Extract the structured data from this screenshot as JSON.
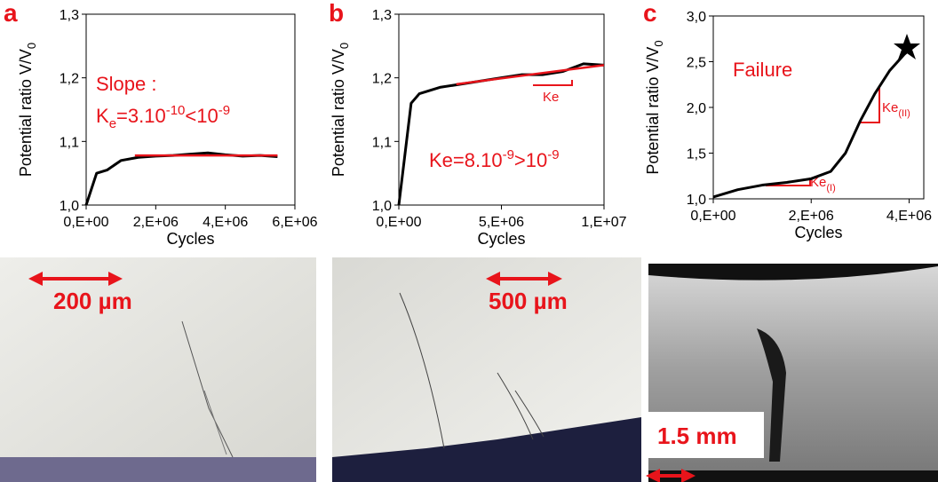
{
  "chart_data": [
    {
      "type": "line",
      "panel": "a",
      "x_label": "Cycles",
      "y_label_parts": [
        "Potential ratio V/V",
        "0"
      ],
      "annotation_lines": [
        [
          "Slope :"
        ],
        [
          "K",
          "e",
          "=3.10",
          "-10",
          "<10",
          "-9"
        ]
      ],
      "xlim": [
        0,
        6000000
      ],
      "xticks": [
        {
          "value": 0,
          "label": "0,E+00"
        },
        {
          "value": 2000000,
          "label": "2,E+06"
        },
        {
          "value": 4000000,
          "label": "4,E+06"
        },
        {
          "value": 6000000,
          "label": "6,E+06"
        }
      ],
      "ylim": [
        1.0,
        1.3
      ],
      "yticks": [
        {
          "value": 1.0,
          "label": "1,0"
        },
        {
          "value": 1.1,
          "label": "1,1"
        },
        {
          "value": 1.2,
          "label": "1,2"
        },
        {
          "value": 1.3,
          "label": "1,3"
        }
      ],
      "x": [
        0,
        300000,
        600000,
        1000000,
        1500000,
        2000000,
        2500000,
        3000000,
        3500000,
        4000000,
        4500000,
        5000000,
        5500000
      ],
      "series": [
        {
          "color": "#000000",
          "values": [
            1.0,
            1.05,
            1.055,
            1.07,
            1.075,
            1.077,
            1.078,
            1.08,
            1.082,
            1.079,
            1.077,
            1.078,
            1.076
          ]
        }
      ],
      "fit_lines": [
        {
          "color": "#e8141b",
          "x": [
            1400000,
            5500000
          ],
          "values": [
            1.078,
            1.078
          ]
        }
      ]
    },
    {
      "type": "line",
      "panel": "b",
      "x_label": "Cycles",
      "y_label_parts": [
        "Potential ratio V/V",
        "0"
      ],
      "annotation_lines": [
        [
          "Ke=8.10",
          "-9",
          ">10",
          "-9"
        ],
        [
          "Ke"
        ]
      ],
      "xlim": [
        0,
        10000000
      ],
      "xticks": [
        {
          "value": 0,
          "label": "0,E+00"
        },
        {
          "value": 5000000,
          "label": "5,E+06"
        },
        {
          "value": 10000000,
          "label": "1,E+07"
        }
      ],
      "ylim": [
        1.0,
        1.3
      ],
      "yticks": [
        {
          "value": 1.0,
          "label": "1,0"
        },
        {
          "value": 1.1,
          "label": "1,1"
        },
        {
          "value": 1.2,
          "label": "1,2"
        },
        {
          "value": 1.3,
          "label": "1,3"
        }
      ],
      "x": [
        0,
        300000,
        600000,
        1000000,
        2000000,
        3000000,
        4000000,
        5000000,
        6000000,
        7000000,
        8000000,
        9000000,
        10000000
      ],
      "series": [
        {
          "color": "#000000",
          "values": [
            1.0,
            1.08,
            1.16,
            1.175,
            1.185,
            1.19,
            1.195,
            1.2,
            1.205,
            1.205,
            1.21,
            1.222,
            1.22
          ]
        }
      ],
      "fit_lines": [
        {
          "color": "#e8141b",
          "x": [
            2800000,
            10000000
          ],
          "values": [
            1.19,
            1.22
          ]
        }
      ]
    },
    {
      "type": "line",
      "panel": "c",
      "x_label": "Cycles",
      "y_label_parts": [
        "Potential ratio V/V",
        "0"
      ],
      "annotation_lines": [
        [
          "Failure"
        ],
        [
          "Ke",
          "(II)"
        ],
        [
          "Ke",
          "(I)"
        ]
      ],
      "xlim": [
        0,
        4300000
      ],
      "xticks": [
        {
          "value": 0,
          "label": "0,E+00"
        },
        {
          "value": 2000000,
          "label": "2,E+06"
        },
        {
          "value": 4000000,
          "label": "4,E+06"
        }
      ],
      "ylim": [
        1.0,
        3.0
      ],
      "yticks": [
        {
          "value": 1.0,
          "label": "1,0"
        },
        {
          "value": 1.5,
          "label": "1,5"
        },
        {
          "value": 2.0,
          "label": "2,0"
        },
        {
          "value": 2.5,
          "label": "2,5"
        },
        {
          "value": 3.0,
          "label": "3,0"
        }
      ],
      "x": [
        0,
        500000,
        1000000,
        1500000,
        2000000,
        2400000,
        2700000,
        3000000,
        3300000,
        3600000,
        3900000,
        4050000
      ],
      "series": [
        {
          "color": "#000000",
          "values": [
            1.02,
            1.1,
            1.15,
            1.18,
            1.22,
            1.3,
            1.5,
            1.85,
            2.15,
            2.4,
            2.58,
            2.65
          ]
        }
      ],
      "fit_lines": []
    }
  ],
  "images": [
    {
      "scale_label": "200 µm"
    },
    {
      "scale_label": "500 µm"
    },
    {
      "scale_label": "1.5 mm"
    }
  ]
}
